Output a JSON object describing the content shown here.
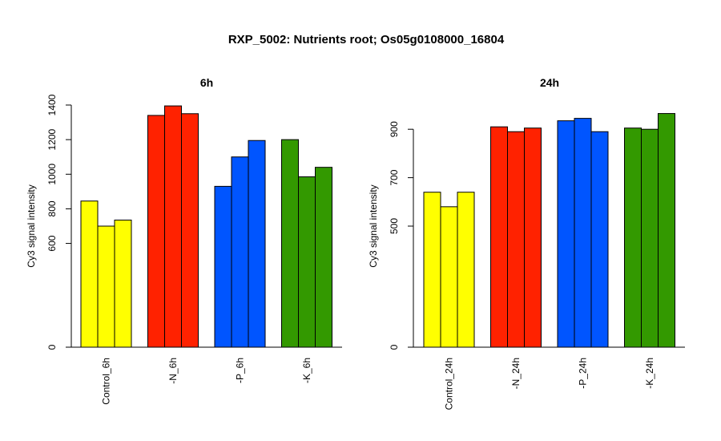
{
  "title": "RXP_5002: Nutrients root; Os05g0108000_16804",
  "chart_data": [
    {
      "type": "bar",
      "title": "6h",
      "ylabel": "Cy3 signal intensity",
      "yticks": [
        0,
        600,
        800,
        1000,
        1200,
        1400
      ],
      "groups": [
        {
          "label": "Control_6h",
          "color": "#ffff00",
          "values": [
            845,
            700,
            735
          ]
        },
        {
          "label": "-N_6h",
          "color": "#ff2200",
          "values": [
            1340,
            1395,
            1350
          ]
        },
        {
          "label": "-P_6h",
          "color": "#0055ff",
          "values": [
            930,
            1100,
            1195
          ]
        },
        {
          "label": "-K_6h",
          "color": "#339900",
          "values": [
            1200,
            985,
            1040
          ]
        }
      ]
    },
    {
      "type": "bar",
      "title": "24h",
      "ylabel": "Cy3 signal intensity",
      "yticks": [
        0,
        500,
        700,
        900
      ],
      "groups": [
        {
          "label": "Control_24h",
          "color": "#ffff00",
          "values": [
            640,
            580,
            640
          ]
        },
        {
          "label": "-N_24h",
          "color": "#ff2200",
          "values": [
            910,
            890,
            905
          ]
        },
        {
          "label": "-P_24h",
          "color": "#0055ff",
          "values": [
            935,
            945,
            890
          ]
        },
        {
          "label": "-K_24h",
          "color": "#339900",
          "values": [
            905,
            900,
            965
          ]
        }
      ]
    }
  ]
}
